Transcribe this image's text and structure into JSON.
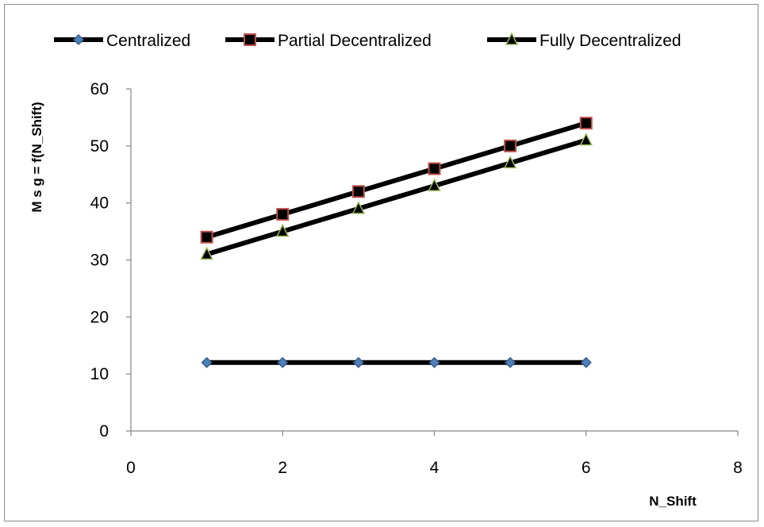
{
  "chart_data": {
    "type": "line",
    "title": "",
    "xlabel": "N_Shift",
    "ylabel": "M s g = f(N_Shift)",
    "xlim": [
      0,
      8
    ],
    "ylim": [
      0,
      60
    ],
    "xticks": [
      0,
      2,
      4,
      6,
      8
    ],
    "yticks": [
      0,
      10,
      20,
      30,
      40,
      50,
      60
    ],
    "grid": false,
    "legend_position": "top",
    "x": [
      1,
      2,
      3,
      4,
      5,
      6
    ],
    "series": [
      {
        "name": "Centralized",
        "values": [
          12,
          12,
          12,
          12,
          12,
          12
        ],
        "marker": "diamond",
        "line_color": "#000000",
        "marker_fill": "#4f81bd",
        "marker_edge": "#385d8a"
      },
      {
        "name": "Partial Decentralized",
        "values": [
          34,
          38,
          42,
          46,
          50,
          54
        ],
        "marker": "square",
        "line_color": "#000000",
        "marker_fill": "#000000",
        "marker_edge": "#c0504d"
      },
      {
        "name": "Fully Decentralized",
        "values": [
          31,
          35,
          39,
          43,
          47,
          51
        ],
        "marker": "triangle",
        "line_color": "#000000",
        "marker_fill": "#000000",
        "marker_edge": "#9bbb59"
      }
    ]
  }
}
